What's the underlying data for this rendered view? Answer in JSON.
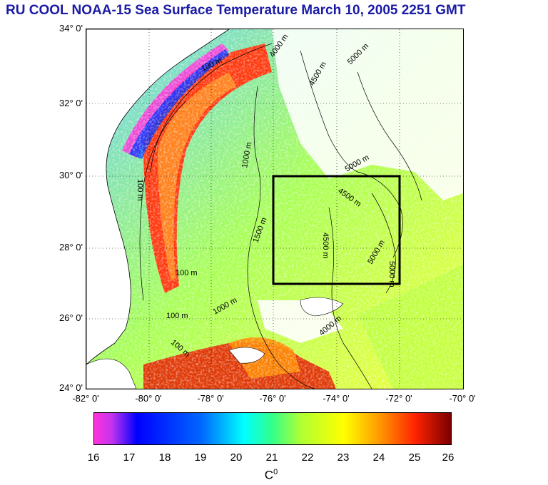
{
  "title": "RU COOL  NOAA-15 Sea Surface Temperature March 10, 2005 2251 GMT",
  "map": {
    "lat_labels": [
      "34° 0'",
      "32° 0'",
      "30° 0'",
      "28° 0'",
      "26° 0'",
      "24° 0'"
    ],
    "lon_labels": [
      "-82° 0'",
      "-80° 0'",
      "-78° 0'",
      "-76° 0'",
      "-74° 0'",
      "-72° 0'",
      "-70° 0'"
    ],
    "contour_labels": [
      "100 m",
      "100 m",
      "100 m",
      "100 m",
      "100 m",
      "4000 m",
      "4500 m",
      "4500 m",
      "5000 m",
      "5000 m",
      "4000 m",
      "1000 m",
      "1500 m",
      "4500 m",
      "5000 m",
      "5000 m",
      "1000 m"
    ],
    "region_box": {
      "lon_min": -76,
      "lon_max": -72,
      "lat_min": 27,
      "lat_max": 30
    }
  },
  "colorbar": {
    "ticks": [
      "16",
      "17",
      "18",
      "19",
      "20",
      "21",
      "22",
      "23",
      "24",
      "25",
      "26"
    ],
    "unit_label": "C",
    "unit_sup": "0",
    "min": 16,
    "max": 26
  },
  "colors": {
    "title": "#1a1aa6",
    "land": "#ffffff",
    "box": "#000000"
  }
}
